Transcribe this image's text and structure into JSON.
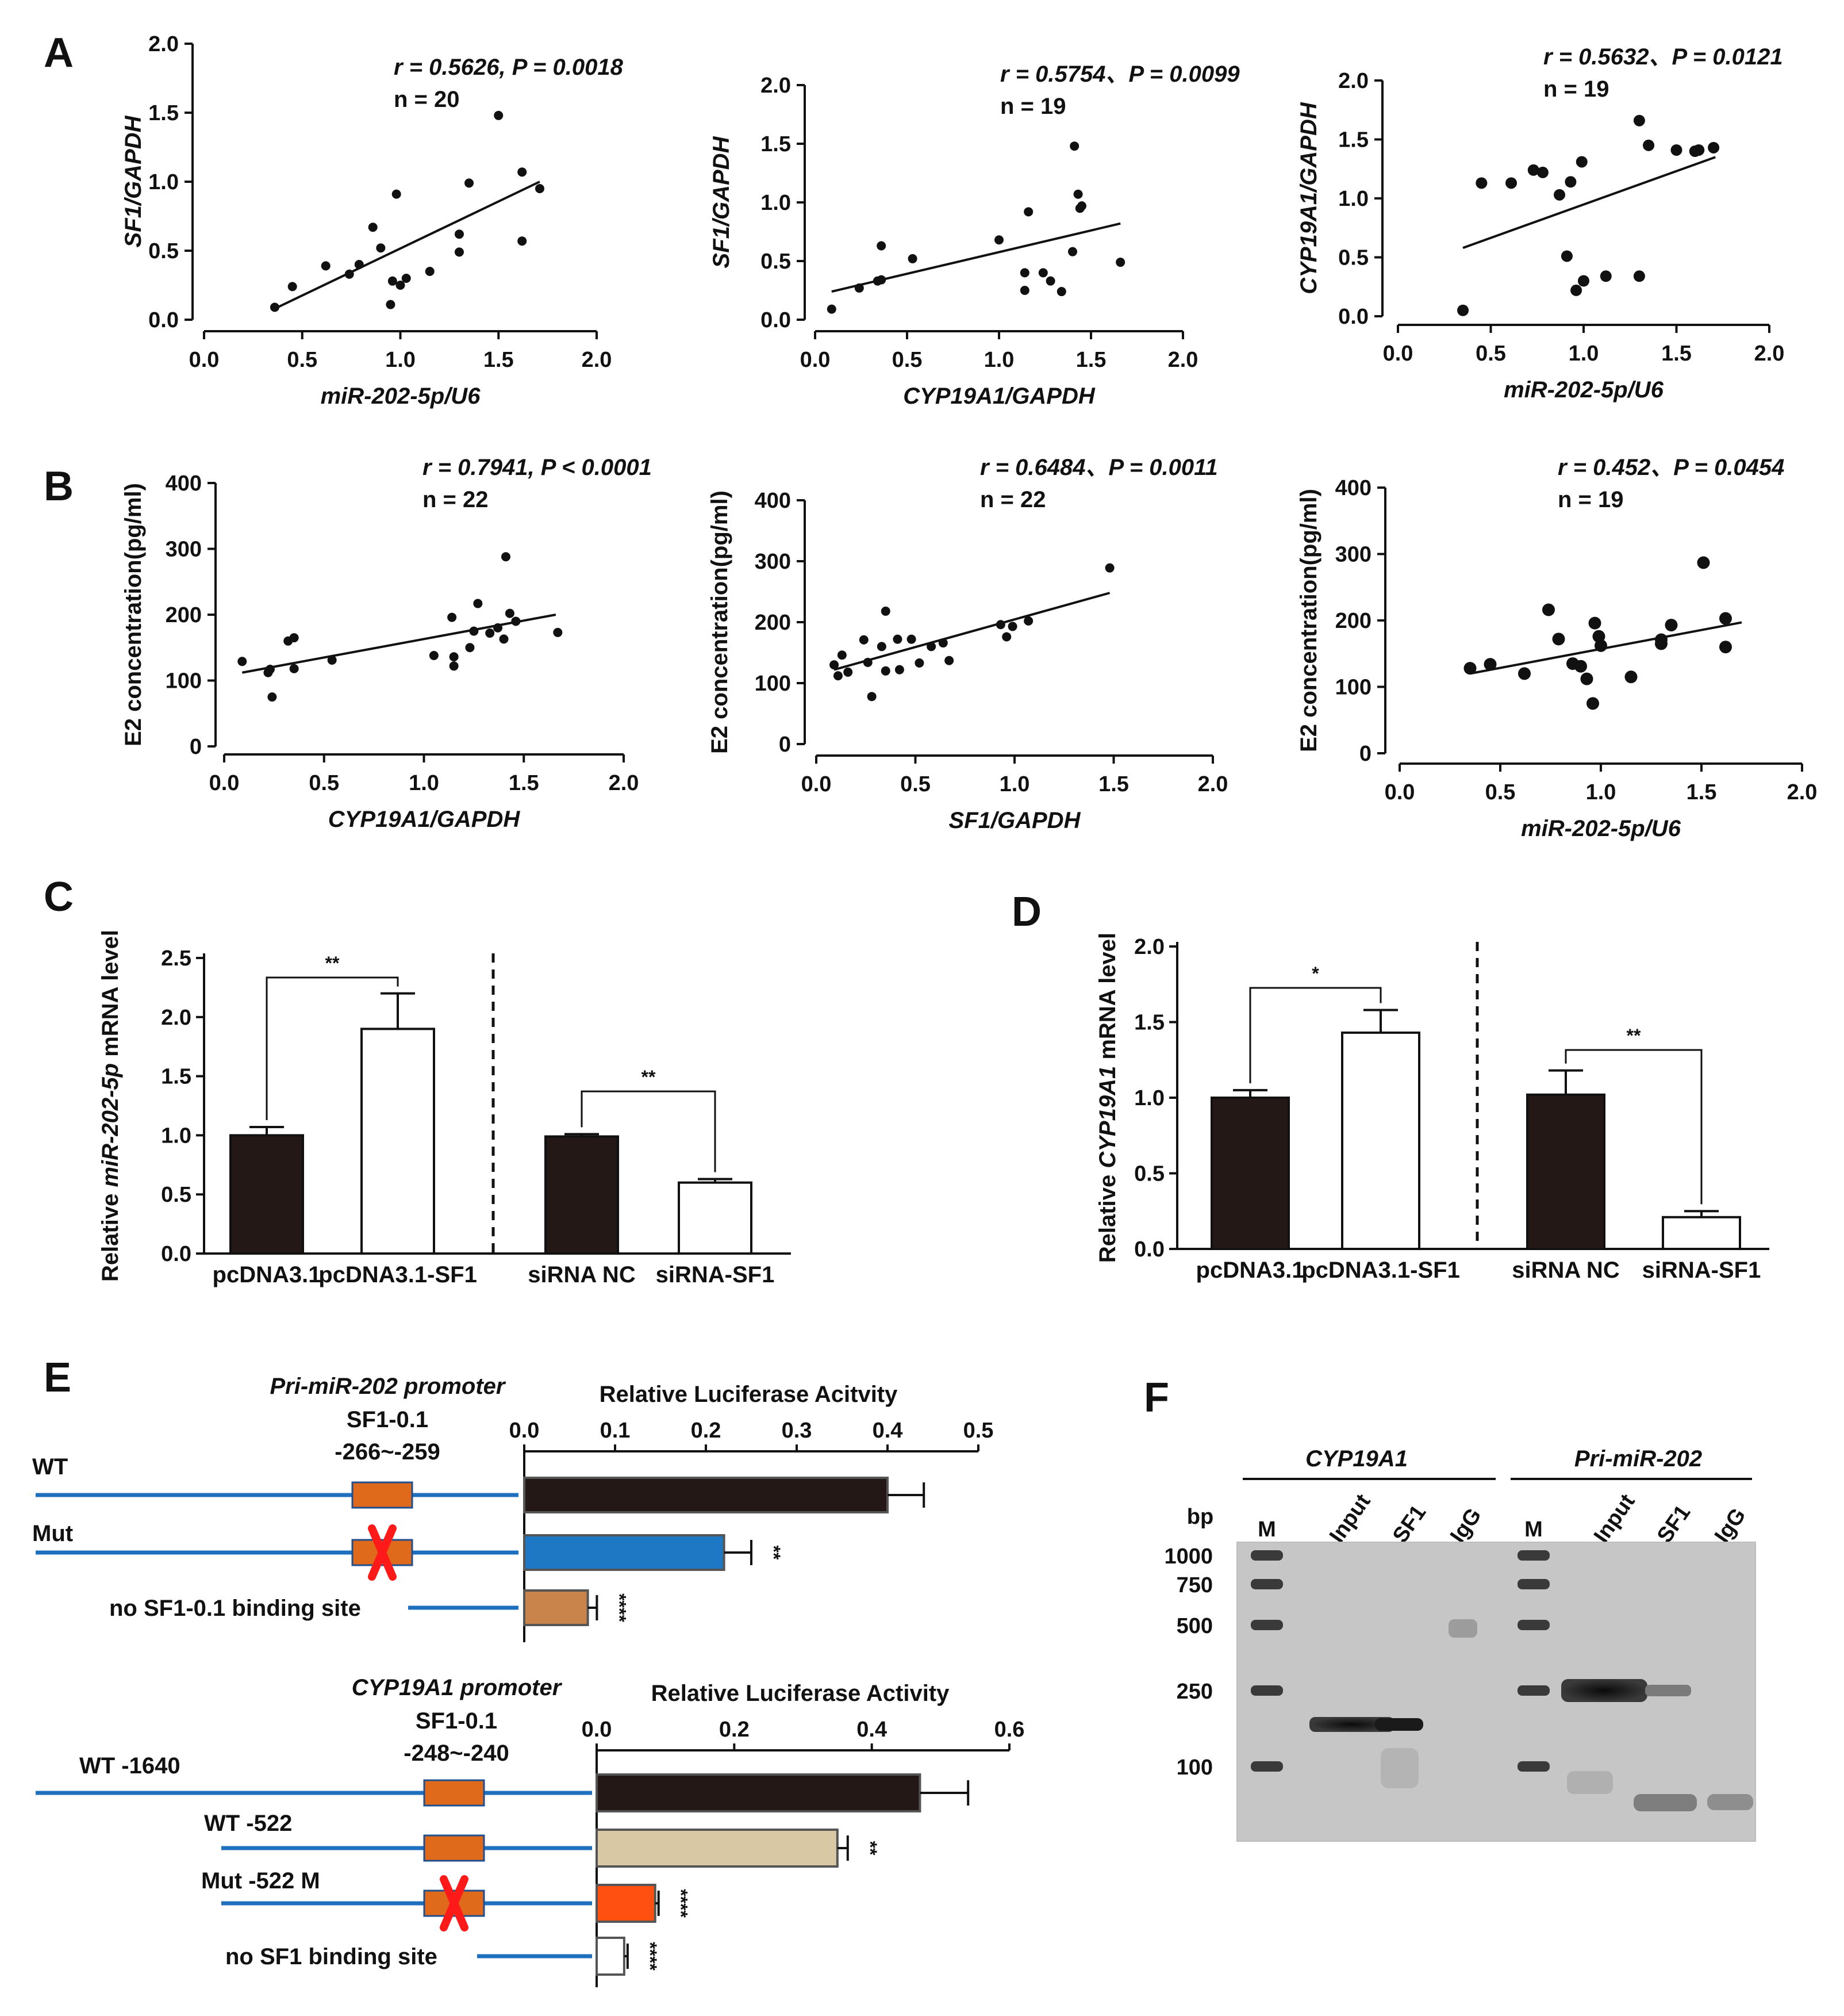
{
  "panels": [
    {
      "id": "A",
      "label": "A"
    },
    {
      "id": "B",
      "label": "B"
    },
    {
      "id": "C",
      "label": "C"
    },
    {
      "id": "D",
      "label": "D"
    },
    {
      "id": "E",
      "label": "E"
    },
    {
      "id": "F",
      "label": "F"
    }
  ],
  "chart_data": [
    {
      "id": "A1",
      "panel": "A",
      "type": "scatter",
      "xlabel": "miR-202-5p/U6",
      "ylabel": "SF1/GAPDH",
      "xlim": [
        0,
        2
      ],
      "ylim": [
        0,
        2
      ],
      "xticks": [
        "0.0",
        "0.5",
        "1.0",
        "1.5",
        "2.0"
      ],
      "yticks": [
        "0.0",
        "0.5",
        "1.0",
        "1.5",
        "2.0"
      ],
      "stat_line1": "r = 0.5626, P = 0.0018",
      "stat_line2": "n = 20",
      "fit": [
        [
          0.36,
          0.08
        ],
        [
          1.71,
          1.0
        ]
      ],
      "points": [
        [
          0.36,
          0.09
        ],
        [
          0.45,
          0.24
        ],
        [
          0.62,
          0.39
        ],
        [
          0.74,
          0.33
        ],
        [
          0.79,
          0.4
        ],
        [
          0.86,
          0.67
        ],
        [
          0.9,
          0.52
        ],
        [
          0.95,
          0.11
        ],
        [
          0.96,
          0.28
        ],
        [
          0.98,
          0.91
        ],
        [
          1.0,
          0.25
        ],
        [
          1.03,
          0.3
        ],
        [
          1.15,
          0.35
        ],
        [
          1.3,
          0.62
        ],
        [
          1.3,
          0.49
        ],
        [
          1.35,
          0.99
        ],
        [
          1.5,
          1.48
        ],
        [
          1.62,
          1.07
        ],
        [
          1.62,
          0.57
        ],
        [
          1.71,
          0.95
        ]
      ]
    },
    {
      "id": "A2",
      "panel": "A",
      "type": "scatter",
      "xlabel": "CYP19A1/GAPDH",
      "ylabel": "SF1/GAPDH",
      "xlim": [
        0,
        2
      ],
      "ylim": [
        0,
        2
      ],
      "xticks": [
        "0.0",
        "0.5",
        "1.0",
        "1.5",
        "2.0"
      ],
      "yticks": [
        "0.0",
        "0.5",
        "1.0",
        "1.5",
        "2.0"
      ],
      "stat_line1": "r = 0.5754、P = 0.0099",
      "stat_line2": "n = 19",
      "fit": [
        [
          0.09,
          0.24
        ],
        [
          1.66,
          0.82
        ]
      ],
      "points": [
        [
          0.09,
          0.09
        ],
        [
          0.24,
          0.27
        ],
        [
          0.34,
          0.33
        ],
        [
          0.36,
          0.34
        ],
        [
          0.36,
          0.63
        ],
        [
          0.53,
          0.52
        ],
        [
          1.0,
          0.68
        ],
        [
          1.14,
          0.4
        ],
        [
          1.14,
          0.25
        ],
        [
          1.16,
          0.92
        ],
        [
          1.24,
          0.4
        ],
        [
          1.28,
          0.33
        ],
        [
          1.34,
          0.24
        ],
        [
          1.4,
          0.58
        ],
        [
          1.41,
          1.48
        ],
        [
          1.43,
          1.07
        ],
        [
          1.44,
          0.95
        ],
        [
          1.45,
          0.97
        ],
        [
          1.66,
          0.49
        ]
      ]
    },
    {
      "id": "A3",
      "panel": "A",
      "type": "scatter",
      "xlabel": "miR-202-5p/U6",
      "ylabel": "CYP19A1/GAPDH",
      "xlim": [
        0,
        2
      ],
      "ylim": [
        0,
        2
      ],
      "xticks": [
        "0.0",
        "0.5",
        "1.0",
        "1.5",
        "2.0"
      ],
      "yticks": [
        "0.0",
        "0.5",
        "1.0",
        "1.5",
        "2.0"
      ],
      "stat_line1": "r = 0.5632、P = 0.0121",
      "stat_line2": "n = 19",
      "fit": [
        [
          0.35,
          0.58
        ],
        [
          1.71,
          1.35
        ]
      ],
      "points": [
        [
          0.35,
          0.05
        ],
        [
          0.45,
          1.13
        ],
        [
          0.61,
          1.13
        ],
        [
          0.73,
          1.24
        ],
        [
          0.78,
          1.22
        ],
        [
          0.87,
          1.03
        ],
        [
          0.91,
          0.51
        ],
        [
          0.93,
          1.14
        ],
        [
          0.96,
          0.22
        ],
        [
          0.99,
          1.31
        ],
        [
          1.0,
          0.3
        ],
        [
          1.12,
          0.34
        ],
        [
          1.3,
          1.66
        ],
        [
          1.3,
          0.34
        ],
        [
          1.35,
          1.45
        ],
        [
          1.5,
          1.41
        ],
        [
          1.6,
          1.4
        ],
        [
          1.62,
          1.41
        ],
        [
          1.7,
          1.43
        ]
      ]
    },
    {
      "id": "B1",
      "panel": "B",
      "type": "scatter",
      "xlabel": "CYP19A1/GAPDH",
      "ylabel": "E2 concentration(pg/ml)",
      "xlim": [
        0,
        2
      ],
      "ylim": [
        0,
        400
      ],
      "xticks": [
        "0.0",
        "0.5",
        "1.0",
        "1.5",
        "2.0"
      ],
      "yticks": [
        "0",
        "100",
        "200",
        "300",
        "400"
      ],
      "stat_line1": "r = 0.7941, P < 0.0001",
      "stat_line2": "n = 22",
      "fit": [
        [
          0.09,
          112
        ],
        [
          1.66,
          200
        ]
      ],
      "points": [
        [
          0.09,
          129
        ],
        [
          0.22,
          112
        ],
        [
          0.23,
          117
        ],
        [
          0.24,
          75
        ],
        [
          0.32,
          160
        ],
        [
          0.35,
          165
        ],
        [
          0.35,
          118
        ],
        [
          0.54,
          131
        ],
        [
          1.05,
          138
        ],
        [
          1.14,
          196
        ],
        [
          1.15,
          136
        ],
        [
          1.15,
          122
        ],
        [
          1.23,
          150
        ],
        [
          1.25,
          175
        ],
        [
          1.27,
          217
        ],
        [
          1.33,
          172
        ],
        [
          1.37,
          180
        ],
        [
          1.4,
          163
        ],
        [
          1.41,
          288
        ],
        [
          1.43,
          202
        ],
        [
          1.46,
          190
        ],
        [
          1.67,
          173
        ]
      ]
    },
    {
      "id": "B2",
      "panel": "B",
      "type": "scatter",
      "xlabel": "SF1/GAPDH",
      "ylabel": "E2 concentration(pg/ml)",
      "xlim": [
        0,
        2
      ],
      "ylim": [
        0,
        400
      ],
      "xticks": [
        "0.0",
        "0.5",
        "1.0",
        "1.5",
        "2.0"
      ],
      "yticks": [
        "0",
        "100",
        "200",
        "300",
        "400"
      ],
      "stat_line1": "r = 0.6484、P = 0.0011",
      "stat_line2": "n = 22",
      "fit": [
        [
          0.09,
          122
        ],
        [
          1.48,
          248
        ]
      ],
      "points": [
        [
          0.09,
          130
        ],
        [
          0.11,
          112
        ],
        [
          0.13,
          146
        ],
        [
          0.16,
          118
        ],
        [
          0.24,
          171
        ],
        [
          0.26,
          134
        ],
        [
          0.28,
          78
        ],
        [
          0.33,
          160
        ],
        [
          0.35,
          218
        ],
        [
          0.35,
          120
        ],
        [
          0.41,
          172
        ],
        [
          0.42,
          122
        ],
        [
          0.48,
          172
        ],
        [
          0.52,
          133
        ],
        [
          0.58,
          160
        ],
        [
          0.64,
          166
        ],
        [
          0.67,
          137
        ],
        [
          0.93,
          196
        ],
        [
          0.96,
          176
        ],
        [
          0.99,
          193
        ],
        [
          1.07,
          202
        ],
        [
          1.48,
          289
        ]
      ]
    },
    {
      "id": "B3",
      "panel": "B",
      "type": "scatter",
      "xlabel": "miR-202-5p/U6",
      "ylabel": "E2 concentration(pg/ml)",
      "xlim": [
        0,
        2
      ],
      "ylim": [
        0,
        400
      ],
      "xticks": [
        "0.0",
        "0.5",
        "1.0",
        "1.5",
        "2.0"
      ],
      "yticks": [
        "0",
        "100",
        "200",
        "300",
        "400"
      ],
      "stat_line1": "r = 0.452、P = 0.0454",
      "stat_line2": "n = 19",
      "fit": [
        [
          0.35,
          120
        ],
        [
          1.7,
          197
        ]
      ],
      "points": [
        [
          0.35,
          128
        ],
        [
          0.45,
          134
        ],
        [
          0.62,
          120
        ],
        [
          0.74,
          216
        ],
        [
          0.79,
          172
        ],
        [
          0.86,
          135
        ],
        [
          0.9,
          131
        ],
        [
          0.93,
          112
        ],
        [
          0.96,
          75
        ],
        [
          0.97,
          196
        ],
        [
          0.99,
          176
        ],
        [
          1.0,
          162
        ],
        [
          1.15,
          115
        ],
        [
          1.3,
          171
        ],
        [
          1.3,
          165
        ],
        [
          1.35,
          193
        ],
        [
          1.51,
          287
        ],
        [
          1.62,
          203
        ],
        [
          1.62,
          160
        ]
      ]
    },
    {
      "id": "C",
      "panel": "C",
      "type": "bar",
      "ylabel_pre": "Relative ",
      "ylabel_it": "miR-202-5p",
      "ylabel_post": " mRNA level",
      "ylim": [
        0,
        2.5
      ],
      "yticks": [
        "0.0",
        "0.5",
        "1.0",
        "1.5",
        "2.0",
        "2.5"
      ],
      "categories": [
        "pcDNA3.1",
        "pcDNA3.1-SF1",
        "siRNA NC",
        "siRNA-SF1"
      ],
      "values": [
        1.0,
        1.9,
        0.99,
        0.6
      ],
      "errors": [
        0.07,
        0.3,
        0.02,
        0.03
      ],
      "colors": [
        "#231815",
        "#ffffff",
        "#231815",
        "#ffffff"
      ],
      "brackets": [
        {
          "pair": [
            0,
            1
          ],
          "label": "**"
        },
        {
          "pair": [
            2,
            3
          ],
          "label": "**"
        }
      ]
    },
    {
      "id": "D",
      "panel": "D",
      "type": "bar",
      "ylabel_pre": "Relative ",
      "ylabel_it": "CYP19A1",
      "ylabel_post": " mRNA level",
      "ylim": [
        0,
        2.0
      ],
      "yticks": [
        "0.0",
        "0.5",
        "1.0",
        "1.5",
        "2.0"
      ],
      "categories": [
        "pcDNA3.1",
        "pcDNA3.1-SF1",
        "siRNA NC",
        "siRNA-SF1"
      ],
      "values": [
        1.0,
        1.43,
        1.02,
        0.21
      ],
      "errors": [
        0.05,
        0.15,
        0.16,
        0.04
      ],
      "colors": [
        "#231815",
        "#ffffff",
        "#231815",
        "#ffffff"
      ],
      "brackets": [
        {
          "pair": [
            0,
            1
          ],
          "label": "*"
        },
        {
          "pair": [
            2,
            3
          ],
          "label": "**"
        }
      ]
    },
    {
      "id": "E1",
      "panel": "E",
      "type": "bar",
      "orientation": "horizontal",
      "title": "Pri-miR-202 promoter",
      "site_name": "SF1-0.1",
      "site_range": "-266~-259",
      "axis_title": "Relative Luciferase Acitvity",
      "xlim": [
        0,
        0.5
      ],
      "xticks": [
        "0.0",
        "0.1",
        "0.2",
        "0.3",
        "0.4",
        "0.5"
      ],
      "categories": [
        "WT",
        "Mut",
        "no SF1-0.1 binding site"
      ],
      "values": [
        0.4,
        0.22,
        0.07
      ],
      "errors": [
        0.04,
        0.03,
        0.01
      ],
      "colors": [
        "#231815",
        "#1f78c4",
        "#c8844a"
      ],
      "sig": [
        "",
        "**",
        "****"
      ]
    },
    {
      "id": "E2",
      "panel": "E",
      "type": "bar",
      "orientation": "horizontal",
      "title": "CYP19A1 promoter",
      "site_name": "SF1-0.1",
      "site_range": "-248~-240",
      "axis_title": "Relative Luciferase Activity",
      "xlim": [
        0,
        0.6
      ],
      "xticks": [
        "0.0",
        "0.2",
        "0.4",
        "0.6"
      ],
      "categories": [
        "WT -1640",
        "WT -522",
        "Mut -522 M",
        "no SF1 binding site"
      ],
      "values": [
        0.47,
        0.35,
        0.085,
        0.04
      ],
      "errors": [
        0.07,
        0.015,
        0.005,
        0.005
      ],
      "colors": [
        "#231815",
        "#d8c8a4",
        "#ff5011",
        "#ffffff"
      ],
      "sig": [
        "",
        "**",
        "****",
        "****"
      ]
    }
  ],
  "gel": {
    "group1": "CYP19A1",
    "group2": "Pri-miR-202",
    "lanes1": [
      "M",
      "Input",
      "SF1",
      "IgG"
    ],
    "lanes2": [
      "M",
      "Input",
      "SF1",
      "IgG"
    ],
    "bp_title": "bp",
    "markers": [
      "1000",
      "750",
      "500",
      "250",
      "100"
    ]
  },
  "colors": {
    "line": "#111111",
    "promoter_line": "#1f6fbf",
    "site_box": "#e06a1b",
    "site_border": "#1f4f8f",
    "cross": "#ff1a1a"
  }
}
